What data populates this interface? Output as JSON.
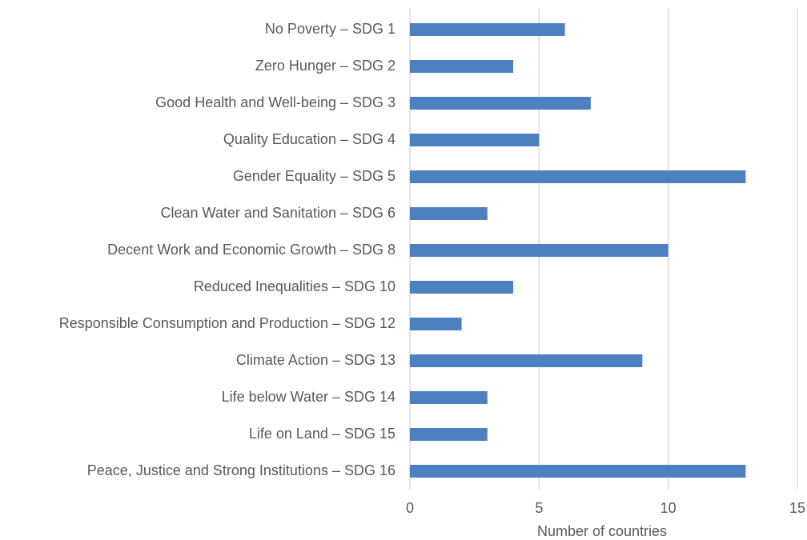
{
  "chart_data": {
    "type": "barh",
    "categories": [
      "No Poverty – SDG 1",
      "Zero Hunger – SDG 2",
      "Good Health and Well-being – SDG 3",
      "Quality Education – SDG 4",
      "Gender Equality – SDG 5",
      "Clean Water and Sanitation – SDG 6",
      "Decent Work and Economic Growth – SDG 8",
      "Reduced Inequalities – SDG 10",
      "Responsible Consumption and Production – SDG 12",
      "Climate Action – SDG 13",
      "Life below Water – SDG 14",
      "Life on Land – SDG 15",
      "Peace, Justice and Strong Institutions – SDG 16"
    ],
    "values": [
      6,
      4,
      7,
      5,
      13,
      3,
      10,
      4,
      2,
      9,
      3,
      3,
      13
    ],
    "color": "#4e7fc0",
    "xlabel": "Number of countries",
    "xlim": [
      0,
      15
    ],
    "xticks": [
      0,
      5,
      10,
      15
    ],
    "grid": true
  }
}
